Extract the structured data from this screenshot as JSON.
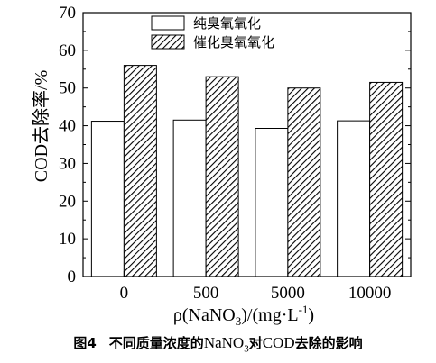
{
  "chart_data": {
    "type": "bar",
    "categories": [
      "0",
      "500",
      "5000",
      "10000"
    ],
    "series": [
      {
        "name": "纯臭氧氧化",
        "values": [
          41.2,
          41.5,
          39.3,
          41.3
        ],
        "pattern": "none"
      },
      {
        "name": "催化臭氧氧化",
        "values": [
          56.0,
          53.0,
          50.0,
          51.5
        ],
        "pattern": "diagonal-hatch"
      }
    ],
    "ylabel": "COD去除率/%",
    "xlabel": {
      "prefix": "ρ(NaNO",
      "sub": "3",
      "middle": ")/(mg·L",
      "sup": "-1",
      "suffix": ")"
    },
    "ylim": [
      0,
      70
    ],
    "yticks": [
      0,
      10,
      20,
      30,
      40,
      50,
      60,
      70
    ],
    "legend_position": "top-center",
    "grid": false
  },
  "caption": {
    "number": "图4",
    "text_before": "不同质量浓度的",
    "chem_main": "NaNO",
    "chem_sub": "3",
    "text_middle": "对",
    "latin": "COD",
    "text_after": "去除的影响"
  },
  "colors": {
    "bar_fill": "#ffffff",
    "bar_stroke": "#000000",
    "hatch": "#000000",
    "axis": "#000000"
  }
}
